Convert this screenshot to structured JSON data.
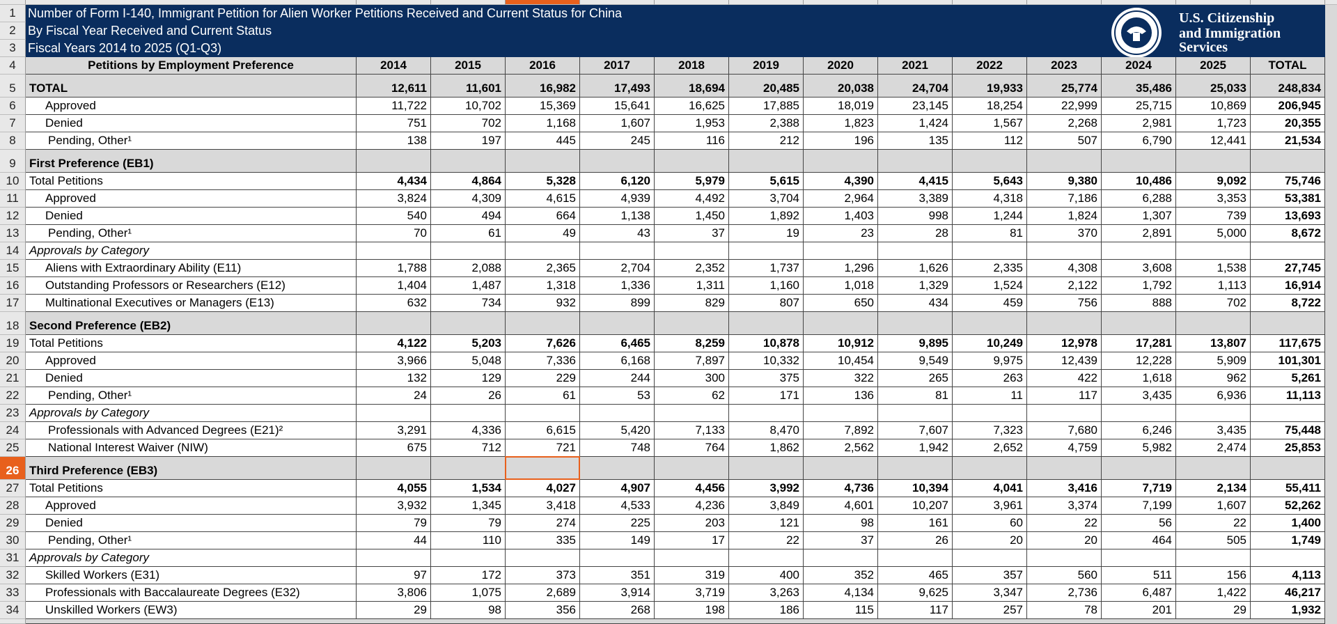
{
  "header": {
    "title_lines": [
      "Number of Form I-140, Immigrant Petition for Alien Worker Petitions Received and Current Status for China",
      "By Fiscal Year Received and Current Status",
      "Fiscal Years 2014 to 2025 (Q1-Q3)"
    ],
    "logo_lines": [
      "U.S. Citizenship",
      "and Immigration",
      "Services"
    ]
  },
  "selection": {
    "row": 26,
    "column": "2016"
  },
  "table": {
    "corner": "Petitions by Employment Preference",
    "columns": [
      "2014",
      "2015",
      "2016",
      "2017",
      "2018",
      "2019",
      "2020",
      "2021",
      "2022",
      "2023",
      "2024",
      "2025",
      "TOTAL"
    ],
    "rows": [
      {
        "n": 5,
        "kind": "grand",
        "label": "TOTAL",
        "values": [
          "12,611",
          "11,601",
          "16,982",
          "17,493",
          "18,694",
          "20,485",
          "20,038",
          "24,704",
          "19,933",
          "25,774",
          "35,486",
          "25,033",
          "248,834"
        ]
      },
      {
        "n": 6,
        "kind": "item",
        "label": "Approved",
        "values": [
          "11,722",
          "10,702",
          "15,369",
          "15,641",
          "16,625",
          "17,885",
          "18,019",
          "23,145",
          "18,254",
          "22,999",
          "25,715",
          "10,869",
          "206,945"
        ]
      },
      {
        "n": 7,
        "kind": "item",
        "label": "Denied",
        "values": [
          "751",
          "702",
          "1,168",
          "1,607",
          "1,953",
          "2,388",
          "1,823",
          "1,424",
          "1,567",
          "2,268",
          "2,981",
          "1,723",
          "20,355"
        ]
      },
      {
        "n": 8,
        "kind": "pending",
        "label": "Pending, Other¹",
        "values": [
          "138",
          "197",
          "445",
          "245",
          "116",
          "212",
          "196",
          "135",
          "112",
          "507",
          "6,790",
          "12,441",
          "21,534"
        ]
      },
      {
        "n": 9,
        "kind": "section",
        "label": "First Preference (EB1)"
      },
      {
        "n": 10,
        "kind": "subtotal",
        "label": "Total Petitions",
        "values": [
          "4,434",
          "4,864",
          "5,328",
          "6,120",
          "5,979",
          "5,615",
          "4,390",
          "4,415",
          "5,643",
          "9,380",
          "10,486",
          "9,092",
          "75,746"
        ]
      },
      {
        "n": 11,
        "kind": "item",
        "label": "Approved",
        "values": [
          "3,824",
          "4,309",
          "4,615",
          "4,939",
          "4,492",
          "3,704",
          "2,964",
          "3,389",
          "4,318",
          "7,186",
          "6,288",
          "3,353",
          "53,381"
        ]
      },
      {
        "n": 12,
        "kind": "item",
        "label": "Denied",
        "values": [
          "540",
          "494",
          "664",
          "1,138",
          "1,450",
          "1,892",
          "1,403",
          "998",
          "1,244",
          "1,824",
          "1,307",
          "739",
          "13,693"
        ]
      },
      {
        "n": 13,
        "kind": "pending",
        "label": "Pending, Other¹",
        "values": [
          "70",
          "61",
          "49",
          "43",
          "37",
          "19",
          "23",
          "28",
          "81",
          "370",
          "2,891",
          "5,000",
          "8,672"
        ]
      },
      {
        "n": 14,
        "kind": "category",
        "label": "Approvals by Category"
      },
      {
        "n": 15,
        "kind": "item",
        "label": "Aliens with Extraordinary Ability (E11)",
        "values": [
          "1,788",
          "2,088",
          "2,365",
          "2,704",
          "2,352",
          "1,737",
          "1,296",
          "1,626",
          "2,335",
          "4,308",
          "3,608",
          "1,538",
          "27,745"
        ]
      },
      {
        "n": 16,
        "kind": "item",
        "label": "Outstanding Professors or Researchers (E12)",
        "values": [
          "1,404",
          "1,487",
          "1,318",
          "1,336",
          "1,311",
          "1,160",
          "1,018",
          "1,329",
          "1,524",
          "2,122",
          "1,792",
          "1,113",
          "16,914"
        ]
      },
      {
        "n": 17,
        "kind": "item",
        "label": "Multinational Executives or Managers (E13)",
        "values": [
          "632",
          "734",
          "932",
          "899",
          "829",
          "807",
          "650",
          "434",
          "459",
          "756",
          "888",
          "702",
          "8,722"
        ]
      },
      {
        "n": 18,
        "kind": "section",
        "label": "Second Preference (EB2)"
      },
      {
        "n": 19,
        "kind": "subtotal",
        "label": "Total Petitions",
        "values": [
          "4,122",
          "5,203",
          "7,626",
          "6,465",
          "8,259",
          "10,878",
          "10,912",
          "9,895",
          "10,249",
          "12,978",
          "17,281",
          "13,807",
          "117,675"
        ]
      },
      {
        "n": 20,
        "kind": "item",
        "label": "Approved",
        "values": [
          "3,966",
          "5,048",
          "7,336",
          "6,168",
          "7,897",
          "10,332",
          "10,454",
          "9,549",
          "9,975",
          "12,439",
          "12,228",
          "5,909",
          "101,301"
        ]
      },
      {
        "n": 21,
        "kind": "item",
        "label": "Denied",
        "values": [
          "132",
          "129",
          "229",
          "244",
          "300",
          "375",
          "322",
          "265",
          "263",
          "422",
          "1,618",
          "962",
          "5,261"
        ]
      },
      {
        "n": 22,
        "kind": "pending",
        "label": "Pending, Other¹",
        "values": [
          "24",
          "26",
          "61",
          "53",
          "62",
          "171",
          "136",
          "81",
          "11",
          "117",
          "3,435",
          "6,936",
          "11,113"
        ]
      },
      {
        "n": 23,
        "kind": "category",
        "label": "Approvals by Category"
      },
      {
        "n": 24,
        "kind": "pending",
        "label": "Professionals with Advanced Degrees (E21)²",
        "values": [
          "3,291",
          "4,336",
          "6,615",
          "5,420",
          "7,133",
          "8,470",
          "7,892",
          "7,607",
          "7,323",
          "7,680",
          "6,246",
          "3,435",
          "75,448"
        ]
      },
      {
        "n": 25,
        "kind": "pending",
        "label": "National Interest Waiver (NIW)",
        "values": [
          "675",
          "712",
          "721",
          "748",
          "764",
          "1,862",
          "2,562",
          "1,942",
          "2,652",
          "4,759",
          "5,982",
          "2,474",
          "25,853"
        ]
      },
      {
        "n": 26,
        "kind": "section",
        "label": "Third Preference (EB3)"
      },
      {
        "n": 27,
        "kind": "subtotal",
        "label": "Total Petitions",
        "values": [
          "4,055",
          "1,534",
          "4,027",
          "4,907",
          "4,456",
          "3,992",
          "4,736",
          "10,394",
          "4,041",
          "3,416",
          "7,719",
          "2,134",
          "55,411"
        ]
      },
      {
        "n": 28,
        "kind": "item",
        "label": "Approved",
        "values": [
          "3,932",
          "1,345",
          "3,418",
          "4,533",
          "4,236",
          "3,849",
          "4,601",
          "10,207",
          "3,961",
          "3,374",
          "7,199",
          "1,607",
          "52,262"
        ]
      },
      {
        "n": 29,
        "kind": "item",
        "label": "Denied",
        "values": [
          "79",
          "79",
          "274",
          "225",
          "203",
          "121",
          "98",
          "161",
          "60",
          "22",
          "56",
          "22",
          "1,400"
        ]
      },
      {
        "n": 30,
        "kind": "pending",
        "label": "Pending, Other¹",
        "values": [
          "44",
          "110",
          "335",
          "149",
          "17",
          "22",
          "37",
          "26",
          "20",
          "20",
          "464",
          "505",
          "1,749"
        ]
      },
      {
        "n": 31,
        "kind": "category",
        "label": "Approvals by Category"
      },
      {
        "n": 32,
        "kind": "item",
        "label": "Skilled Workers (E31)",
        "values": [
          "97",
          "172",
          "373",
          "351",
          "319",
          "400",
          "352",
          "465",
          "357",
          "560",
          "511",
          "156",
          "4,113"
        ]
      },
      {
        "n": 33,
        "kind": "item",
        "label": "Professionals with Baccalaureate Degrees (E32)",
        "values": [
          "3,806",
          "1,075",
          "2,689",
          "3,914",
          "3,719",
          "3,263",
          "4,134",
          "9,625",
          "3,347",
          "2,736",
          "6,487",
          "1,422",
          "46,217"
        ]
      },
      {
        "n": 34,
        "kind": "item",
        "label": "Unskilled Workers (EW3)",
        "values": [
          "29",
          "98",
          "356",
          "268",
          "198",
          "186",
          "115",
          "117",
          "257",
          "78",
          "201",
          "29",
          "1,932"
        ]
      }
    ]
  },
  "row_numbers": [
    1,
    2,
    3,
    4
  ]
}
